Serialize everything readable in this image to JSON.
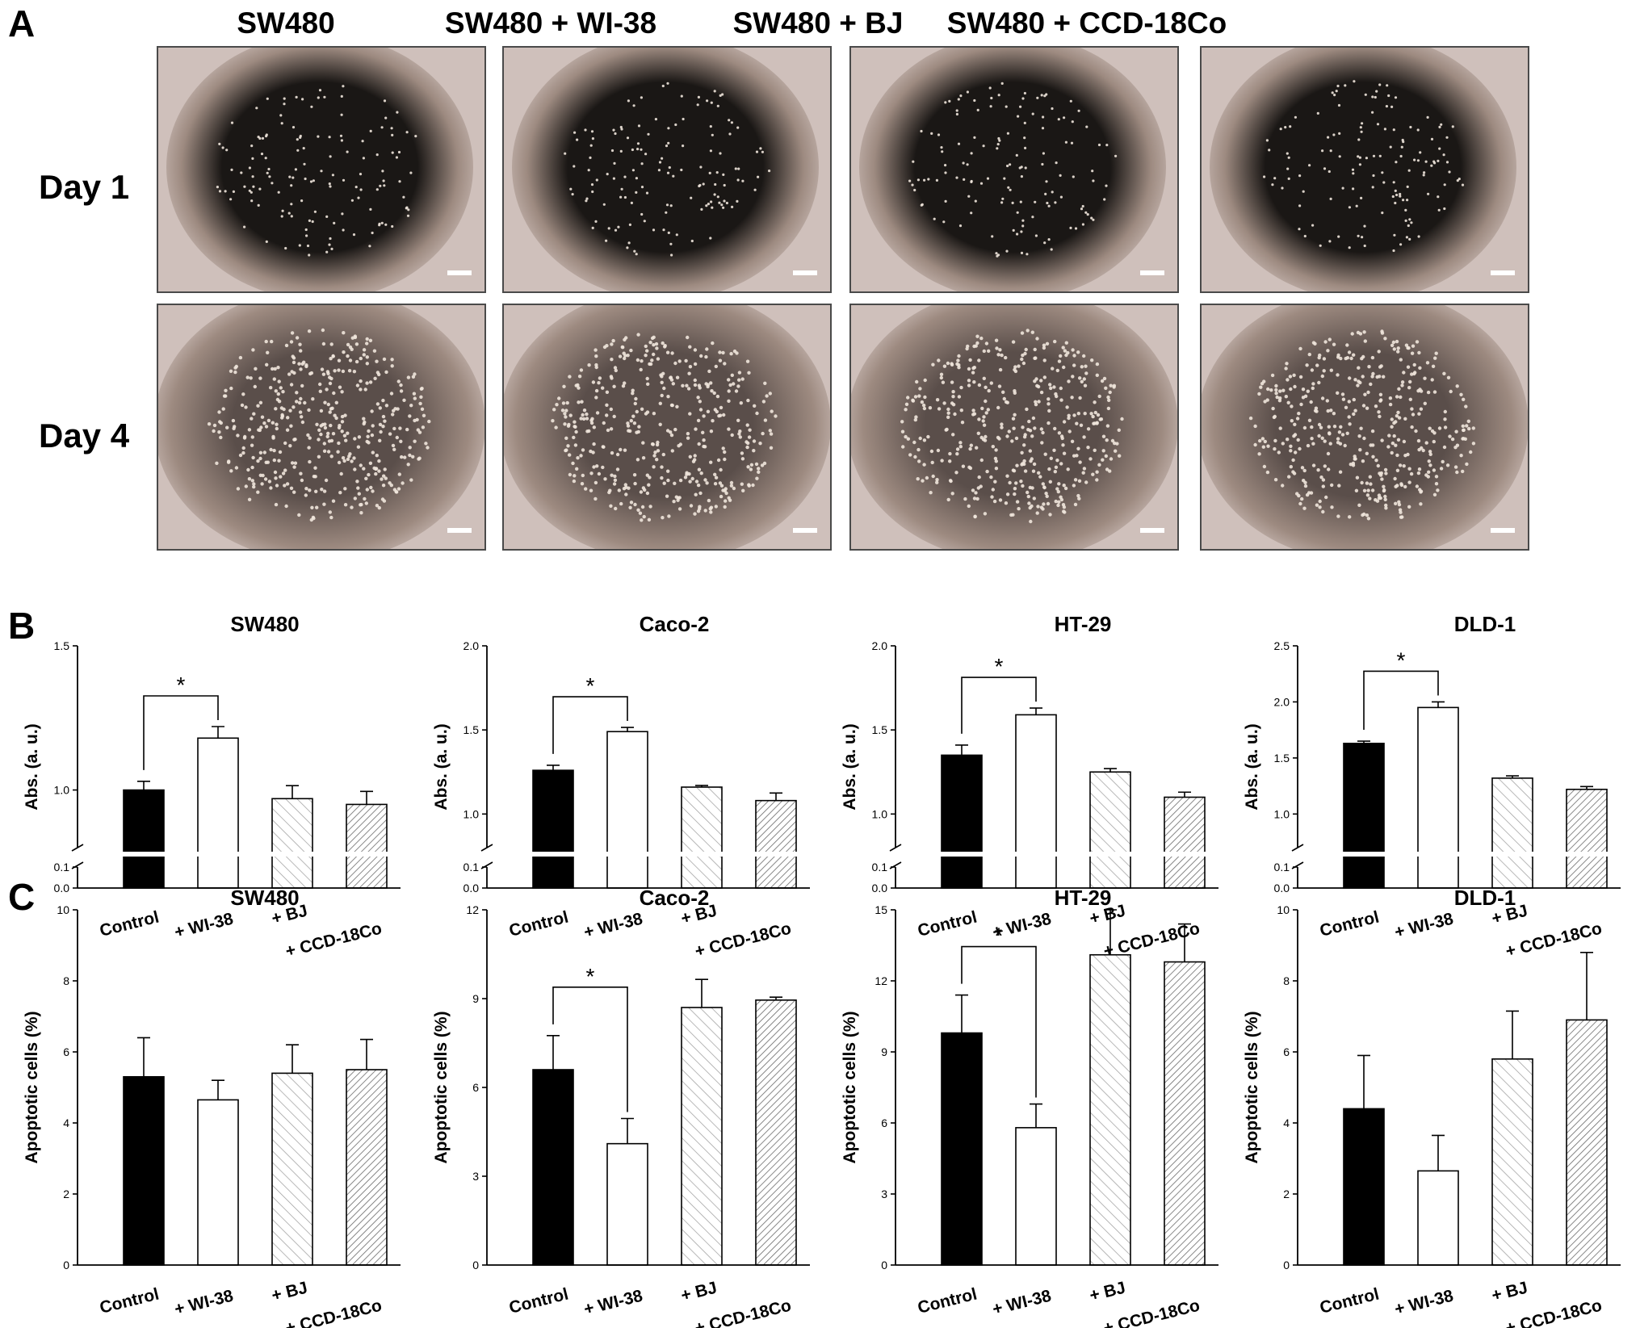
{
  "figure": {
    "panel_a": "A",
    "panel_b": "B",
    "panel_c": "C",
    "column_titles": [
      "SW480",
      "SW480 + WI-38",
      "SW480 + BJ",
      "SW480 + CCD-18Co"
    ],
    "row_labels": [
      "Day 1",
      "Day 4"
    ]
  },
  "micrographs": {
    "background_color": "#cfc0bb",
    "well_color_day1": "#1a1715",
    "well_color_day4": "#5a4e4a",
    "cell_color": "#f0e6dc",
    "scale_bar_color": "#ffffff"
  },
  "chart_data": [
    {
      "type": "bar",
      "panel": "B",
      "title": "SW480",
      "ylabel": "Abs. (a. u.)",
      "categories": [
        "Control",
        "+ WI-38",
        "+ BJ",
        "+ CCD-18Co"
      ],
      "values": [
        1.0,
        1.18,
        0.97,
        0.95
      ],
      "errors": [
        0.03,
        0.04,
        0.045,
        0.045
      ],
      "axis_break": true,
      "lower_range": [
        0,
        0.1
      ],
      "upper_range": [
        0.8,
        1.5
      ],
      "lower_ticks": [
        "0.0",
        "0.1"
      ],
      "upper_ticks": [
        {
          "v": 1.0,
          "label": "1.0"
        },
        {
          "v": 1.5,
          "label": "1.5"
        }
      ],
      "significance": {
        "from": 0,
        "to": 1,
        "label": "*"
      }
    },
    {
      "type": "bar",
      "panel": "B",
      "title": "Caco-2",
      "ylabel": "Abs. (a. u.)",
      "categories": [
        "Control",
        "+ WI-38",
        "+ BJ",
        "+ CCD-18Co"
      ],
      "values": [
        1.26,
        1.49,
        1.16,
        1.08
      ],
      "errors": [
        0.03,
        0.025,
        0.01,
        0.045
      ],
      "axis_break": true,
      "lower_range": [
        0,
        0.1
      ],
      "upper_range": [
        0.8,
        2.0
      ],
      "lower_ticks": [
        "0.0",
        "0.1"
      ],
      "upper_ticks": [
        {
          "v": 1.0,
          "label": "1.0"
        },
        {
          "v": 1.5,
          "label": "1.5"
        },
        {
          "v": 2.0,
          "label": "2.0"
        }
      ],
      "significance": {
        "from": 0,
        "to": 1,
        "label": "*"
      }
    },
    {
      "type": "bar",
      "panel": "B",
      "title": "HT-29",
      "ylabel": "Abs. (a. u.)",
      "categories": [
        "Control",
        "+ WI-38",
        "+ BJ",
        "+ CCD-18Co"
      ],
      "values": [
        1.35,
        1.59,
        1.25,
        1.1
      ],
      "errors": [
        0.06,
        0.04,
        0.02,
        0.03
      ],
      "axis_break": true,
      "lower_range": [
        0,
        0.1
      ],
      "upper_range": [
        0.8,
        2.0
      ],
      "lower_ticks": [
        "0.0",
        "0.1"
      ],
      "upper_ticks": [
        {
          "v": 1.0,
          "label": "1.0"
        },
        {
          "v": 1.5,
          "label": "1.5"
        },
        {
          "v": 2.0,
          "label": "2.0"
        }
      ],
      "significance": {
        "from": 0,
        "to": 1,
        "label": "*"
      }
    },
    {
      "type": "bar",
      "panel": "B",
      "title": "DLD-1",
      "ylabel": "Abs. (a. u.)",
      "categories": [
        "Control",
        "+ WI-38",
        "+ BJ",
        "+ CCD-18Co"
      ],
      "values": [
        1.63,
        1.95,
        1.32,
        1.22
      ],
      "errors": [
        0.02,
        0.05,
        0.02,
        0.025
      ],
      "axis_break": true,
      "lower_range": [
        0,
        0.1
      ],
      "upper_range": [
        0.7,
        2.5
      ],
      "lower_ticks": [
        "0.0",
        "0.1"
      ],
      "upper_ticks": [
        {
          "v": 1.0,
          "label": "1.0"
        },
        {
          "v": 1.5,
          "label": "1.5"
        },
        {
          "v": 2.0,
          "label": "2.0"
        },
        {
          "v": 2.5,
          "label": "2.5"
        }
      ],
      "significance": {
        "from": 0,
        "to": 1,
        "label": "*"
      }
    },
    {
      "type": "bar",
      "panel": "C",
      "title": "SW480",
      "ylabel": "Apoptotic cells (%)",
      "categories": [
        "Control",
        "+ WI-38",
        "+ BJ",
        "+ CCD-18Co"
      ],
      "values": [
        5.3,
        4.65,
        5.4,
        5.5
      ],
      "errors": [
        1.1,
        0.55,
        0.8,
        0.85
      ],
      "ylim": [
        0,
        10
      ],
      "yticks": [
        0,
        2,
        4,
        6,
        8,
        10
      ]
    },
    {
      "type": "bar",
      "panel": "C",
      "title": "Caco-2",
      "ylabel": "Apoptotic cells (%)",
      "categories": [
        "Control",
        "+ WI-38",
        "+ BJ",
        "+ CCD-18Co"
      ],
      "values": [
        6.6,
        4.1,
        8.7,
        8.95
      ],
      "errors": [
        1.15,
        0.85,
        0.95,
        0.1
      ],
      "ylim": [
        0,
        12
      ],
      "yticks": [
        0,
        3,
        6,
        9,
        12
      ],
      "significance": {
        "from": 0,
        "to": 1,
        "label": "*"
      }
    },
    {
      "type": "bar",
      "panel": "C",
      "title": "HT-29",
      "ylabel": "Apoptotic cells (%)",
      "categories": [
        "Control",
        "+ WI-38",
        "+ BJ",
        "+ CCD-18Co"
      ],
      "values": [
        9.8,
        5.8,
        13.1,
        12.8
      ],
      "errors": [
        1.6,
        1.0,
        1.9,
        1.6
      ],
      "ylim": [
        0,
        15
      ],
      "yticks": [
        0,
        3,
        6,
        9,
        12,
        15
      ],
      "significance": {
        "from": 0,
        "to": 1,
        "label": "*"
      }
    },
    {
      "type": "bar",
      "panel": "C",
      "title": "DLD-1",
      "ylabel": "Apoptotic cells (%)",
      "categories": [
        "Control",
        "+ WI-38",
        "+ BJ",
        "+ CCD-18Co"
      ],
      "values": [
        4.4,
        2.65,
        5.8,
        6.9
      ],
      "errors": [
        1.5,
        1.0,
        1.35,
        1.9
      ],
      "ylim": [
        0,
        10
      ],
      "yticks": [
        0,
        2,
        4,
        6,
        8,
        10
      ]
    }
  ]
}
